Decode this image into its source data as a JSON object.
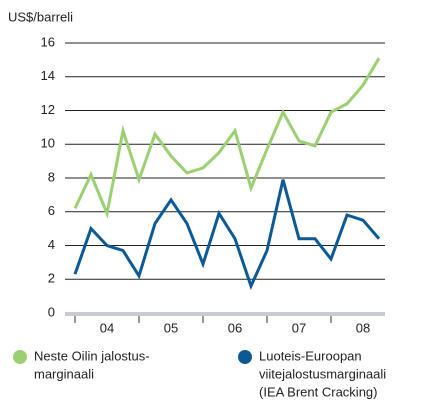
{
  "chart_data": {
    "type": "line",
    "y_label": "US$/barreli",
    "x_labels": [
      "04",
      "05",
      "06",
      "07",
      "08"
    ],
    "points_per_label": 4,
    "ylim": [
      0,
      16
    ],
    "yticks": [
      0,
      2,
      4,
      6,
      8,
      10,
      12,
      14,
      16
    ],
    "grid": true,
    "series": [
      {
        "name": [
          "Neste Oilin jalostus-",
          "marginaali"
        ],
        "color": "#9ccf72",
        "values": [
          6.2,
          8.2,
          5.9,
          10.8,
          7.9,
          10.6,
          9.3,
          8.3,
          8.6,
          9.5,
          10.8,
          7.4,
          9.7,
          11.9,
          10.2,
          9.9,
          11.9,
          12.4,
          13.5,
          15.1
        ]
      },
      {
        "name": [
          "Luoteis-Euroopan",
          "viitejalostusmarginaali",
          "(IEA Brent Cracking)"
        ],
        "color": "#0b5a96",
        "values": [
          2.3,
          5.0,
          4.0,
          3.7,
          2.2,
          5.3,
          6.7,
          5.3,
          2.9,
          5.9,
          4.4,
          1.6,
          3.7,
          7.9,
          4.4,
          4.4,
          3.2,
          5.8,
          5.5,
          4.4
        ]
      }
    ]
  }
}
